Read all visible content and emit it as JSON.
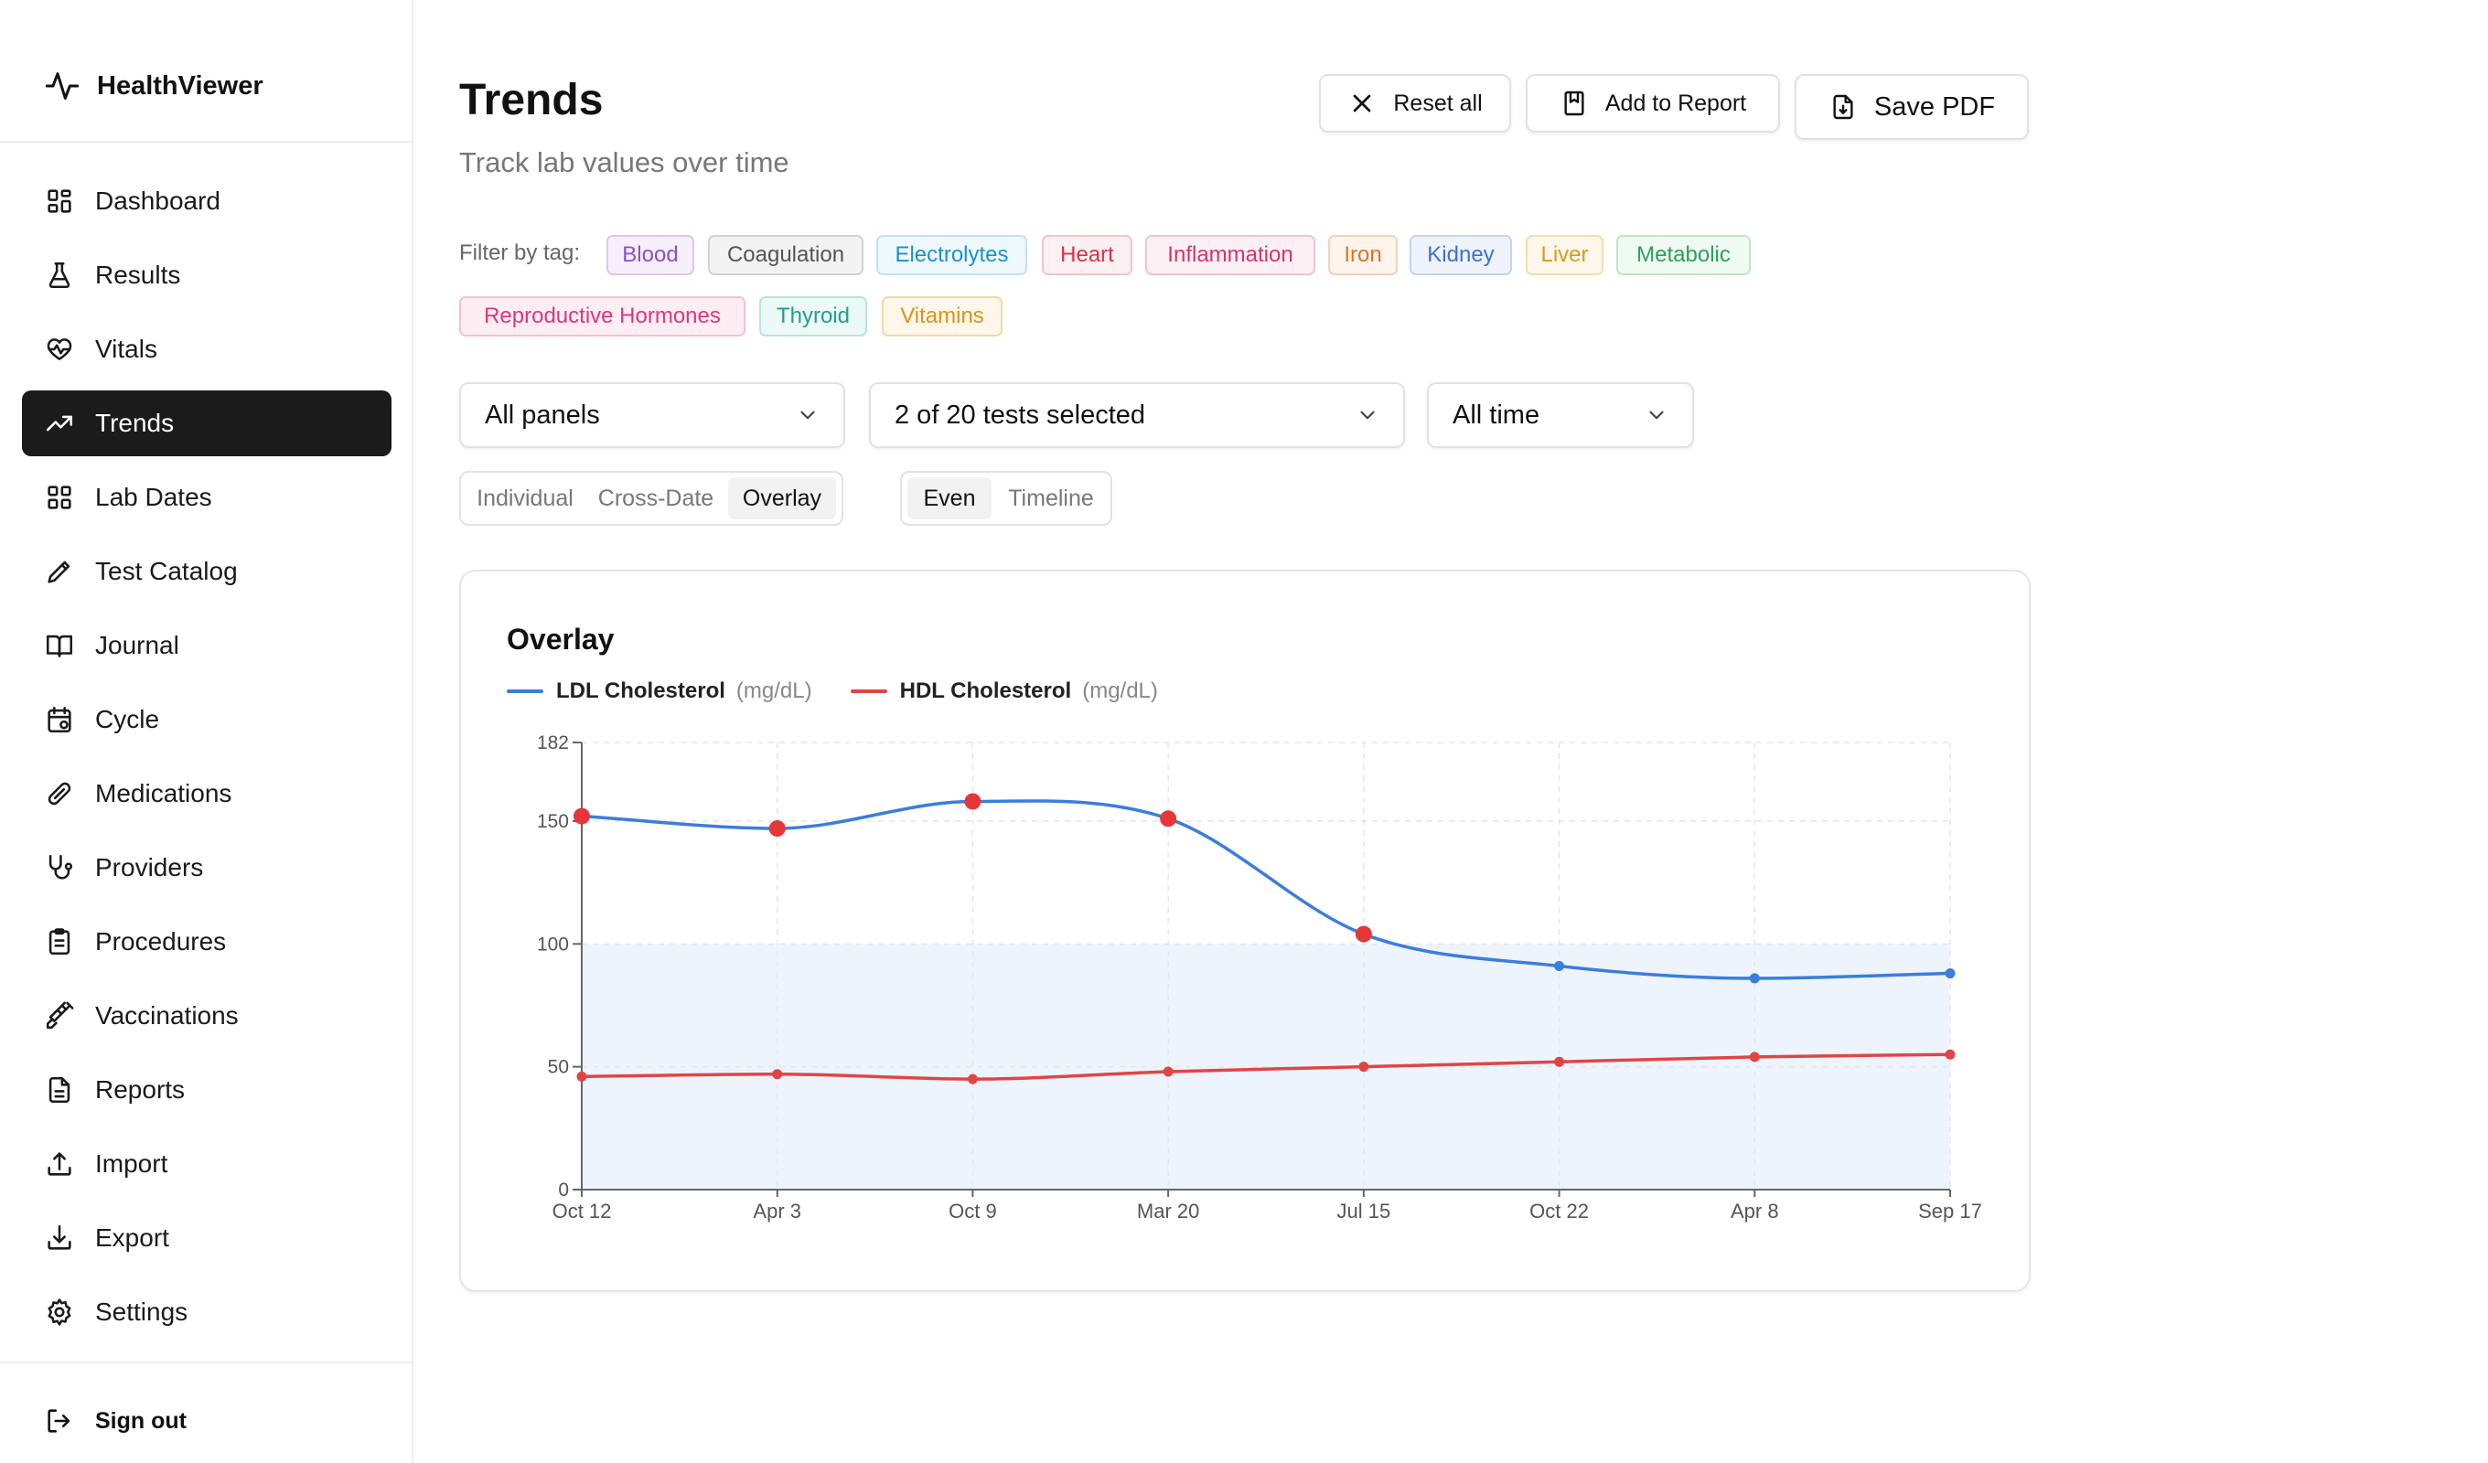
{
  "app": {
    "name": "HealthViewer"
  },
  "sidebar": {
    "items": [
      {
        "label": "Dashboard",
        "icon": "dashboard-icon"
      },
      {
        "label": "Results",
        "icon": "flask-icon"
      },
      {
        "label": "Vitals",
        "icon": "heart-pulse-icon"
      },
      {
        "label": "Trends",
        "icon": "trending-up-icon",
        "active": true
      },
      {
        "label": "Lab Dates",
        "icon": "grid-icon"
      },
      {
        "label": "Test Catalog",
        "icon": "pencil-icon"
      },
      {
        "label": "Journal",
        "icon": "book-icon"
      },
      {
        "label": "Cycle",
        "icon": "calendar-icon"
      },
      {
        "label": "Medications",
        "icon": "pill-icon"
      },
      {
        "label": "Providers",
        "icon": "stethoscope-icon"
      },
      {
        "label": "Procedures",
        "icon": "clipboard-icon"
      },
      {
        "label": "Vaccinations",
        "icon": "syringe-icon"
      },
      {
        "label": "Reports",
        "icon": "file-text-icon"
      },
      {
        "label": "Import",
        "icon": "upload-icon"
      },
      {
        "label": "Export",
        "icon": "download-icon"
      },
      {
        "label": "Settings",
        "icon": "gear-icon"
      }
    ],
    "signout_label": "Sign out"
  },
  "page": {
    "title": "Trends",
    "subtitle": "Track lab values over time"
  },
  "toolbar": {
    "reset_label": "Reset all",
    "add_label": "Add to Report",
    "save_label": "Save PDF"
  },
  "filter": {
    "label": "Filter by tag:",
    "tags": [
      {
        "label": "Blood",
        "color": "#8e4ec6",
        "bg": "#f6effc",
        "border": "#dcc6f2"
      },
      {
        "label": "Coagulation",
        "color": "#555555",
        "bg": "#f3f3f3",
        "border": "#d2d2d2"
      },
      {
        "label": "Electrolytes",
        "color": "#1e90c8",
        "bg": "#eef8fd",
        "border": "#bfe2f4"
      },
      {
        "label": "Heart",
        "color": "#d9304a",
        "bg": "#fdf0f2",
        "border": "#f5c2cb"
      },
      {
        "label": "Inflammation",
        "color": "#d6336c",
        "bg": "#fdf0f5",
        "border": "#f4c2d5"
      },
      {
        "label": "Iron",
        "color": "#e0702a",
        "bg": "#fef4ec",
        "border": "#f6d0b4"
      },
      {
        "label": "Kidney",
        "color": "#3b6fd4",
        "bg": "#eef3fd",
        "border": "#c3d4f4"
      },
      {
        "label": "Liver",
        "color": "#d99a1e",
        "bg": "#fef8ec",
        "border": "#f3ddb0"
      },
      {
        "label": "Metabolic",
        "color": "#2f9e5a",
        "bg": "#eefaf2",
        "border": "#bfe6cc"
      },
      {
        "label": "Reproductive Hormones",
        "color": "#e0357a",
        "bg": "#fdeef4",
        "border": "#f5bfd3"
      },
      {
        "label": "Thyroid",
        "color": "#1f9e8e",
        "bg": "#edf9f7",
        "border": "#b8e4de"
      },
      {
        "label": "Vitamins",
        "color": "#d9921e",
        "bg": "#fef7ea",
        "border": "#f3d9a8"
      }
    ]
  },
  "controls": {
    "panels_value": "All panels",
    "tests_value": "2 of 20 tests selected",
    "range_value": "All time"
  },
  "view_modes": [
    {
      "label": "Individual",
      "active": false
    },
    {
      "label": "Cross-Date",
      "active": false
    },
    {
      "label": "Overlay",
      "active": true
    }
  ],
  "spacing_modes": [
    {
      "label": "Even",
      "active": true
    },
    {
      "label": "Timeline",
      "active": false
    }
  ],
  "chart_data": {
    "type": "line",
    "title": "Overlay",
    "categories": [
      "Oct 12",
      "Apr 3",
      "Oct 9",
      "Mar 20",
      "Jul 15",
      "Oct 22",
      "Apr 8",
      "Sep 17"
    ],
    "series": [
      {
        "name": "LDL Cholesterol",
        "unit": "(mg/dL)",
        "color": "#3b7ddd",
        "values": [
          152,
          147,
          158,
          151,
          104,
          91,
          86,
          88
        ],
        "flagged": [
          true,
          true,
          true,
          true,
          true,
          false,
          false,
          false
        ]
      },
      {
        "name": "HDL Cholesterol",
        "unit": "(mg/dL)",
        "color": "#e04545",
        "values": [
          46,
          47,
          45,
          48,
          50,
          52,
          54,
          55
        ],
        "flagged": [
          false,
          false,
          false,
          false,
          false,
          false,
          false,
          false
        ]
      }
    ],
    "reference_range": [
      0,
      100
    ],
    "reference_color": "#eef4fd",
    "ylim": [
      0,
      182
    ],
    "yticks": [
      0,
      50,
      100,
      150,
      182
    ],
    "xlabel": "",
    "ylabel": "",
    "grid": true,
    "legend": "top-left",
    "flag_color": "#e5363a"
  }
}
